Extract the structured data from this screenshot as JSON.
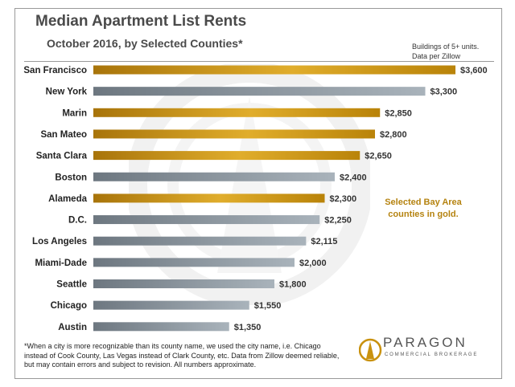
{
  "title": "Median Apartment List Rents",
  "subtitle": "October 2016, by Selected Counties*",
  "source_note": [
    "Buildings of 5+ units.",
    "Data per Zillow"
  ],
  "bay_area_note": [
    "Selected Bay Area",
    "counties in gold."
  ],
  "footnote": "*When a city is more recognizable than its county name, we used the city name, i.e. Chicago instead of Cook County, Las Vegas instead of Clark County, etc. Data from Zillow deemed reliable, but may contain errors and subject to revision. All numbers approximate.",
  "logo": {
    "name": "PARAGON",
    "tagline": "COMMERCIAL BROKERAGE"
  },
  "colors": {
    "gold": "#c9920f",
    "gray": "#7f8b95",
    "note_gold": "#b58310"
  },
  "chart_data": {
    "type": "bar",
    "orientation": "horizontal",
    "categories": [
      "San Francisco",
      "New York",
      "Marin",
      "San Mateo",
      "Santa Clara",
      "Boston",
      "Alameda",
      "D.C.",
      "Los Angeles",
      "Miami-Dade",
      "Seattle",
      "Chicago",
      "Austin"
    ],
    "values": [
      3600,
      3300,
      2850,
      2800,
      2650,
      2400,
      2300,
      2250,
      2115,
      2000,
      1800,
      1550,
      1350
    ],
    "value_labels": [
      "$3,600",
      "$3,300",
      "$2,850",
      "$2,800",
      "$2,650",
      "$2,400",
      "$2,300",
      "$2,250",
      "$2,115",
      "$2,000",
      "$1,800",
      "$1,550",
      "$1,350"
    ],
    "bay_area": [
      true,
      false,
      true,
      true,
      true,
      false,
      true,
      false,
      false,
      false,
      false,
      false,
      false
    ],
    "title": "Median Apartment List Rents",
    "subtitle": "October 2016, by Selected Counties*",
    "xlim": [
      0,
      3600
    ],
    "grid": false,
    "legend": "none"
  }
}
